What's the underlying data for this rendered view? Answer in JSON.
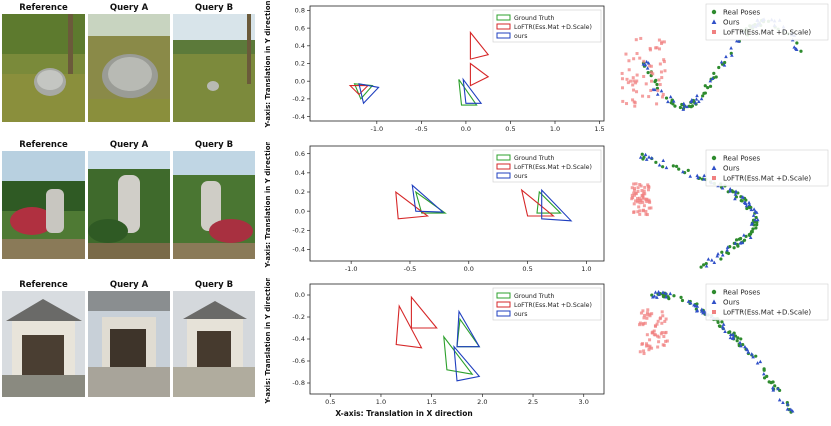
{
  "photo_rows": [
    {
      "titles": [
        "Reference",
        "Query A",
        "Query B"
      ],
      "scene": "stone"
    },
    {
      "titles": [
        "Reference",
        "Query A",
        "Query B"
      ],
      "scene": "monument"
    },
    {
      "titles": [
        "Reference",
        "Query A",
        "Query B"
      ],
      "scene": "shrine"
    }
  ],
  "colors": {
    "gt": "#2ca02c",
    "loftr": "#d62728",
    "ours": "#1f3fbf",
    "real": "#2e8b2e",
    "ours_pt": "#3050c8",
    "loftr_pt": "#f08080"
  },
  "chart_data": [
    {
      "type": "line",
      "xlabel": "",
      "ylabel": "Y-axis: Translation in Y direction",
      "xlim": [
        -1.75,
        1.55
      ],
      "ylim": [
        -0.45,
        0.85
      ],
      "xticks": [
        "-1.0",
        "-0.5",
        "0.0",
        "0.5",
        "1.0",
        "1.5"
      ],
      "xtick_vals": [
        -1.0,
        -0.5,
        0.0,
        0.5,
        1.0,
        1.5
      ],
      "yticks": [
        "-0.4",
        "-0.2",
        "0.0",
        "0.2",
        "0.4",
        "0.6",
        "0.8"
      ],
      "ytick_vals": [
        -0.4,
        -0.2,
        0.0,
        0.2,
        0.4,
        0.6,
        0.8
      ],
      "legend": [
        "Ground Truth",
        "LoFTR(Ess.Mat +D.Scale)",
        "ours"
      ],
      "legend_pos": "top-right",
      "series": [
        {
          "name": "Ground Truth",
          "color": "gt",
          "triangles": [
            [
              [
                -1.25,
                -0.03
              ],
              [
                -1.05,
                -0.05
              ],
              [
                -1.18,
                -0.2
              ]
            ],
            [
              [
                -0.08,
                0.02
              ],
              [
                -0.05,
                -0.27
              ],
              [
                0.12,
                -0.27
              ]
            ]
          ]
        },
        {
          "name": "LoFTR(Ess.Mat +D.Scale)",
          "color": "loftr",
          "triangles": [
            [
              [
                -1.3,
                -0.05
              ],
              [
                -1.1,
                -0.05
              ],
              [
                -1.2,
                -0.15
              ]
            ],
            [
              [
                0.05,
                0.55
              ],
              [
                0.05,
                0.25
              ],
              [
                0.25,
                0.3
              ]
            ],
            [
              [
                0.05,
                0.2
              ],
              [
                0.05,
                -0.05
              ],
              [
                0.25,
                0.05
              ]
            ]
          ]
        },
        {
          "name": "ours",
          "color": "ours",
          "triangles": [
            [
              [
                -1.2,
                -0.03
              ],
              [
                -0.98,
                -0.07
              ],
              [
                -1.15,
                -0.25
              ]
            ],
            [
              [
                -0.03,
                0.02
              ],
              [
                0.0,
                -0.25
              ],
              [
                0.17,
                -0.25
              ]
            ]
          ]
        }
      ]
    },
    {
      "type": "line",
      "xlabel": "",
      "ylabel": "Y-axis: Translation in Y direction",
      "xlim": [
        -1.35,
        1.15
      ],
      "ylim": [
        -0.52,
        0.68
      ],
      "xticks": [
        "-1.0",
        "-0.5",
        "0.0",
        "0.5",
        "1.0"
      ],
      "xtick_vals": [
        -1.0,
        -0.5,
        0.0,
        0.5,
        1.0
      ],
      "yticks": [
        "-0.4",
        "-0.2",
        "0.0",
        "0.2",
        "0.4",
        "0.6"
      ],
      "ytick_vals": [
        -0.4,
        -0.2,
        0.0,
        0.2,
        0.4,
        0.6
      ],
      "legend": [
        "Ground Truth",
        "LoFTR(Ess.Mat +D.Scale)",
        "ours"
      ],
      "legend_pos": "top-right",
      "series": [
        {
          "name": "Ground Truth",
          "color": "gt",
          "triangles": [
            [
              [
                -0.45,
                0.2
              ],
              [
                -0.4,
                -0.02
              ],
              [
                -0.2,
                -0.02
              ]
            ],
            [
              [
                0.6,
                0.2
              ],
              [
                0.58,
                -0.02
              ],
              [
                0.78,
                -0.02
              ]
            ]
          ]
        },
        {
          "name": "LoFTR(Ess.Mat +D.Scale)",
          "color": "loftr",
          "triangles": [
            [
              [
                -0.62,
                0.2
              ],
              [
                -0.6,
                -0.08
              ],
              [
                -0.35,
                -0.05
              ]
            ],
            [
              [
                0.45,
                0.22
              ],
              [
                0.5,
                -0.05
              ],
              [
                0.72,
                -0.05
              ]
            ]
          ]
        },
        {
          "name": "ours",
          "color": "ours",
          "triangles": [
            [
              [
                -0.48,
                0.27
              ],
              [
                -0.45,
                0.0
              ],
              [
                -0.22,
                -0.01
              ]
            ],
            [
              [
                0.62,
                0.22
              ],
              [
                0.62,
                -0.08
              ],
              [
                0.87,
                -0.1
              ]
            ]
          ]
        }
      ]
    },
    {
      "type": "line",
      "xlabel": "X-axis: Translation in X direction",
      "ylabel": "Y-axis: Translation in Y direction",
      "xlim": [
        0.3,
        3.2
      ],
      "ylim": [
        -0.9,
        0.1
      ],
      "xticks": [
        "0.5",
        "1.0",
        "1.5",
        "2.0",
        "2.5",
        "3.0"
      ],
      "xtick_vals": [
        0.5,
        1.0,
        1.5,
        2.0,
        2.5,
        3.0
      ],
      "yticks": [
        "-0.8",
        "-0.6",
        "-0.4",
        "-0.2",
        "0.0"
      ],
      "ytick_vals": [
        -0.8,
        -0.6,
        -0.4,
        -0.2,
        0.0
      ],
      "legend": [
        "Ground Truth",
        "LoFTR(Ess.Mat +D.Scale)",
        "ours"
      ],
      "legend_pos": "top-right",
      "series": [
        {
          "name": "Ground Truth",
          "color": "gt",
          "triangles": [
            [
              [
                1.62,
                -0.38
              ],
              [
                1.65,
                -0.68
              ],
              [
                1.9,
                -0.72
              ]
            ],
            [
              [
                1.78,
                -0.22
              ],
              [
                1.75,
                -0.47
              ],
              [
                1.97,
                -0.47
              ]
            ]
          ]
        },
        {
          "name": "LoFTR(Ess.Mat +D.Scale)",
          "color": "loftr",
          "triangles": [
            [
              [
                1.18,
                -0.1
              ],
              [
                1.15,
                -0.45
              ],
              [
                1.4,
                -0.48
              ]
            ],
            [
              [
                1.3,
                -0.02
              ],
              [
                1.3,
                -0.3
              ],
              [
                1.55,
                -0.3
              ]
            ]
          ]
        },
        {
          "name": "ours",
          "color": "ours",
          "triangles": [
            [
              [
                1.72,
                -0.47
              ],
              [
                1.75,
                -0.78
              ],
              [
                1.97,
                -0.74
              ]
            ],
            [
              [
                1.77,
                -0.15
              ],
              [
                1.75,
                -0.47
              ],
              [
                1.97,
                -0.47
              ]
            ]
          ]
        }
      ]
    }
  ],
  "scatter_panels": [
    {
      "legend": [
        "Real Poses",
        "Ours",
        "LoFTR(Ess.Mat +D.Scale)"
      ]
    },
    {
      "legend": [
        "Real Poses",
        "Ours",
        "LoFTR(Ess.Mat +D.Scale)"
      ]
    },
    {
      "legend": [
        "Real Poses",
        "Ours",
        "LoFTR(Ess.Mat +D.Scale)"
      ]
    }
  ]
}
